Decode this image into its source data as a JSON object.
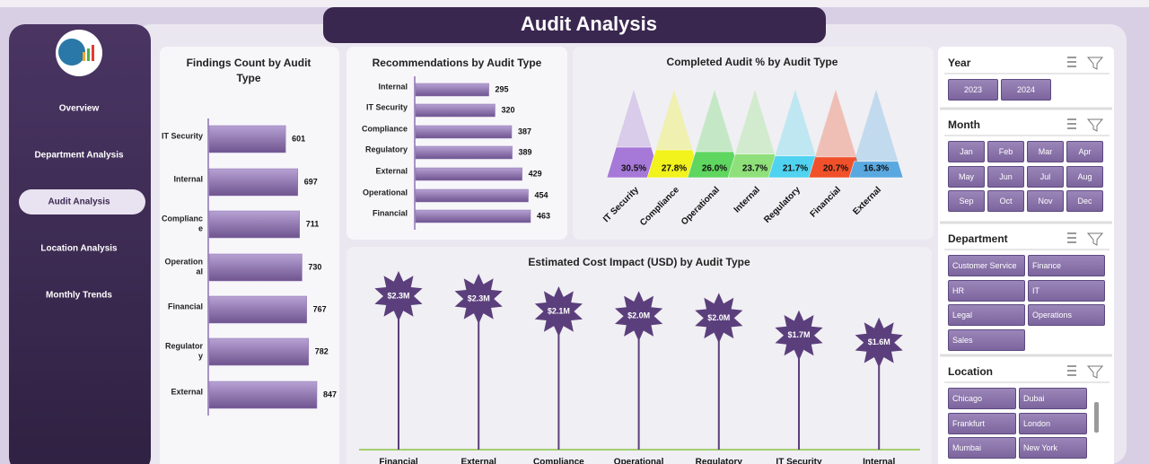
{
  "header": {
    "title": "Audit Analysis"
  },
  "nav": {
    "items": [
      "Overview",
      "Department Analysis",
      "Audit Analysis",
      "Location Analysis",
      "Monthly Trends"
    ],
    "active": 2
  },
  "chart_data": [
    {
      "type": "hbar",
      "title": "Findings Count by Audit Type",
      "color": "#8d72b2",
      "categories": [
        "IT Security",
        "Internal",
        "Compliance",
        "Operational",
        "Financial",
        "Regulatory",
        "External"
      ],
      "values": [
        601,
        697,
        711,
        730,
        767,
        782,
        847
      ]
    },
    {
      "type": "hbar",
      "title": "Recommendations by Audit Type",
      "color": "#8d72b2",
      "categories": [
        "Internal",
        "IT Security",
        "Compliance",
        "Regulatory",
        "External",
        "Operational",
        "Financial"
      ],
      "values": [
        295,
        320,
        387,
        389,
        429,
        454,
        463
      ]
    },
    {
      "type": "pyramid",
      "title": "Completed Audit % by Audit Type",
      "categories": [
        "IT Security",
        "Compliance",
        "Operational",
        "Internal",
        "Regulatory",
        "Financial",
        "External"
      ],
      "values": [
        30.5,
        27.8,
        26.0,
        23.7,
        21.7,
        20.7,
        16.3
      ],
      "value_labels": [
        "30.5%",
        "27.8%",
        "26.0%",
        "23.7%",
        "21.7%",
        "20.7%",
        "16.3%"
      ],
      "colors": [
        "#a678d8",
        "#f2f21c",
        "#5fd65f",
        "#8fe07a",
        "#4fd3f0",
        "#f0502a",
        "#5aa8e0"
      ]
    },
    {
      "type": "lollipop",
      "title": "Estimated Cost Impact (USD) by Audit Type",
      "color": "#5b3f7c",
      "baseline_color": "#8bc34a",
      "categories": [
        "Financial",
        "External",
        "Compliance",
        "Operational",
        "Regulatory",
        "IT Security",
        "Internal"
      ],
      "values": [
        2310000,
        2270000,
        2080000,
        2010000,
        1980000,
        1720000,
        1610000
      ],
      "value_labels": [
        "$2.3M",
        "$2.3M",
        "$2.1M",
        "$2.0M",
        "$2.0M",
        "$1.7M",
        "$1.6M"
      ]
    }
  ],
  "slicers": [
    {
      "title": "Year",
      "items": [
        "2023",
        "2024"
      ]
    },
    {
      "title": "Month",
      "items": [
        "Jan",
        "Feb",
        "Mar",
        "Apr",
        "May",
        "Jun",
        "Jul",
        "Aug",
        "Sep",
        "Oct",
        "Nov",
        "Dec"
      ]
    },
    {
      "title": "Department",
      "items": [
        "Customer Service",
        "Finance",
        "HR",
        "IT",
        "Legal",
        "Operations",
        "Sales"
      ]
    },
    {
      "title": "Location",
      "items": [
        "Chicago",
        "Dubai",
        "Frankfurt",
        "London",
        "Mumbai",
        "New York"
      ]
    }
  ]
}
